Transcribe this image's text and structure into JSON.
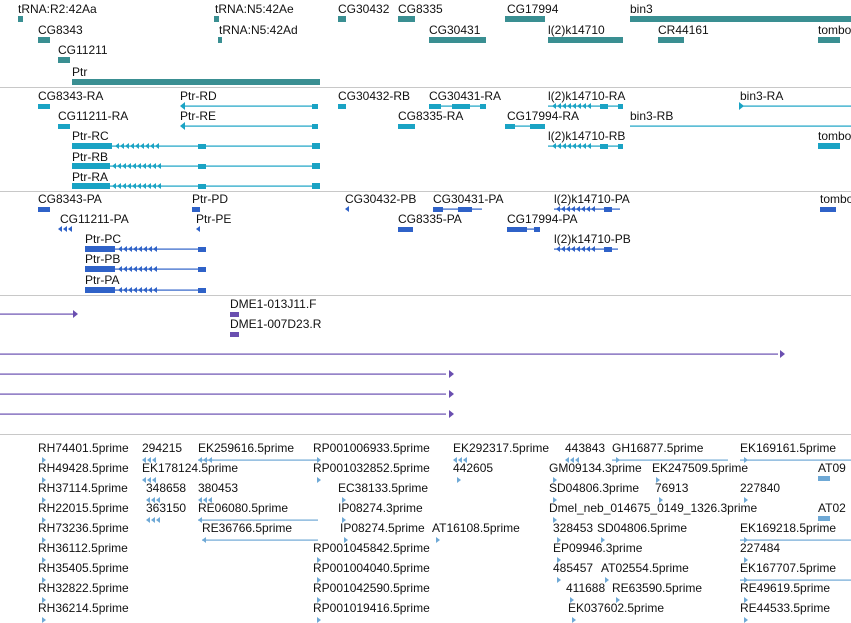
{
  "colors": {
    "gene": "#3a8f92",
    "rna": "#1aa3c4",
    "protein": "#2f62c8",
    "clone": "#6a4fb0",
    "est": "#6fa9d6",
    "separator": "#c8c8c8"
  },
  "tracks": [
    {
      "name": "genes",
      "color": "gene",
      "labels": [
        {
          "id": "g1",
          "text": "tRNA:R2:42Aa"
        },
        {
          "id": "g2",
          "text": "tRNA:N5:42Ae"
        },
        {
          "id": "g3",
          "text": "CG30432"
        },
        {
          "id": "g4",
          "text": "CG8335"
        },
        {
          "id": "g5",
          "text": "CG17994"
        },
        {
          "id": "g6",
          "text": "bin3"
        },
        {
          "id": "g7",
          "text": "CG8343"
        },
        {
          "id": "g8",
          "text": "tRNA:N5:42Ad"
        },
        {
          "id": "g9",
          "text": "CG30431"
        },
        {
          "id": "g10",
          "text": "l(2)k14710"
        },
        {
          "id": "g11",
          "text": "CR44161"
        },
        {
          "id": "g12",
          "text": "tombo"
        },
        {
          "id": "g13",
          "text": "CG11211"
        },
        {
          "id": "g14",
          "text": "Ptr"
        }
      ]
    },
    {
      "name": "transcripts",
      "color": "rna",
      "labels": [
        {
          "id": "t1",
          "text": "CG8343-RA"
        },
        {
          "id": "t2",
          "text": "Ptr-RD"
        },
        {
          "id": "t3",
          "text": "CG30432-RB"
        },
        {
          "id": "t4",
          "text": "CG30431-RA"
        },
        {
          "id": "t5",
          "text": "l(2)k14710-RA"
        },
        {
          "id": "t6",
          "text": "bin3-RA"
        },
        {
          "id": "t7",
          "text": "CG11211-RA"
        },
        {
          "id": "t8",
          "text": "Ptr-RE"
        },
        {
          "id": "t9",
          "text": "CG8335-RA"
        },
        {
          "id": "t10",
          "text": "CG17994-RA"
        },
        {
          "id": "t11",
          "text": "bin3-RB"
        },
        {
          "id": "t12",
          "text": "Ptr-RC"
        },
        {
          "id": "t13",
          "text": "l(2)k14710-RB"
        },
        {
          "id": "t14",
          "text": "tombo"
        },
        {
          "id": "t15",
          "text": "Ptr-RB"
        },
        {
          "id": "t16",
          "text": "Ptr-RA"
        }
      ]
    },
    {
      "name": "proteins",
      "color": "protein",
      "labels": [
        {
          "id": "p1",
          "text": "CG8343-PA"
        },
        {
          "id": "p2",
          "text": "Ptr-PD"
        },
        {
          "id": "p3",
          "text": "CG30432-PB"
        },
        {
          "id": "p4",
          "text": "CG30431-PA"
        },
        {
          "id": "p5",
          "text": "l(2)k14710-PA"
        },
        {
          "id": "p6",
          "text": "tombo"
        },
        {
          "id": "p7",
          "text": "CG11211-PA"
        },
        {
          "id": "p8",
          "text": "Ptr-PE"
        },
        {
          "id": "p9",
          "text": "CG8335-PA"
        },
        {
          "id": "p10",
          "text": "CG17994-PA"
        },
        {
          "id": "p11",
          "text": "l(2)k14710-PB"
        },
        {
          "id": "p12",
          "text": "Ptr-PC"
        },
        {
          "id": "p13",
          "text": "Ptr-PB"
        },
        {
          "id": "p14",
          "text": "Ptr-PA"
        }
      ]
    },
    {
      "name": "clones",
      "color": "clone",
      "labels": [
        {
          "id": "c1",
          "text": "DME1-013J11.F"
        },
        {
          "id": "c2",
          "text": "DME1-007D23.R"
        }
      ]
    },
    {
      "name": "ests",
      "color": "est",
      "labels": [
        {
          "id": "e1",
          "text": "RH74401.5prime"
        },
        {
          "id": "e2",
          "text": "294215"
        },
        {
          "id": "e3",
          "text": "EK259616.5prime"
        },
        {
          "id": "e4",
          "text": "RP001006933.5prime"
        },
        {
          "id": "e5",
          "text": "EK292317.5prime"
        },
        {
          "id": "e6",
          "text": "443843"
        },
        {
          "id": "e7",
          "text": "GH16877.5prime"
        },
        {
          "id": "e8",
          "text": "EK169161.5prime"
        },
        {
          "id": "e9",
          "text": "RH49428.5prime"
        },
        {
          "id": "e10",
          "text": "EK178124.5prime"
        },
        {
          "id": "e11",
          "text": "RP001032852.5prime"
        },
        {
          "id": "e12",
          "text": "442605"
        },
        {
          "id": "e13",
          "text": "GM09134.3prime"
        },
        {
          "id": "e14",
          "text": "EK247509.5prime"
        },
        {
          "id": "e15",
          "text": "AT09"
        },
        {
          "id": "e16",
          "text": "RH37114.5prime"
        },
        {
          "id": "e17",
          "text": "348658"
        },
        {
          "id": "e18",
          "text": "380453"
        },
        {
          "id": "e19",
          "text": "EC38133.5prime"
        },
        {
          "id": "e20",
          "text": "SD04806.3prime"
        },
        {
          "id": "e21",
          "text": "76913"
        },
        {
          "id": "e22",
          "text": "227840"
        },
        {
          "id": "e23",
          "text": "RH22015.5prime"
        },
        {
          "id": "e24",
          "text": "363150"
        },
        {
          "id": "e25",
          "text": "RE06080.5prime"
        },
        {
          "id": "e26",
          "text": "IP08274.3prime"
        },
        {
          "id": "e27",
          "text": "Dmel_neb_014675_0149_1326.3prime"
        },
        {
          "id": "e28",
          "text": "AT02"
        },
        {
          "id": "e29",
          "text": "RH73236.5prime"
        },
        {
          "id": "e30",
          "text": "RE36766.5prime"
        },
        {
          "id": "e31",
          "text": "IP08274.5prime"
        },
        {
          "id": "e32",
          "text": "AT16108.5prime"
        },
        {
          "id": "e33",
          "text": "328453"
        },
        {
          "id": "e34",
          "text": "SD04806.5prime"
        },
        {
          "id": "e35",
          "text": "EK169218.5prime"
        },
        {
          "id": "e36",
          "text": "RH36112.5prime"
        },
        {
          "id": "e37",
          "text": "RP001045842.5prime"
        },
        {
          "id": "e38",
          "text": "EP09946.3prime"
        },
        {
          "id": "e39",
          "text": "227484"
        },
        {
          "id": "e40",
          "text": "RH35405.5prime"
        },
        {
          "id": "e41",
          "text": "RP001004040.5prime"
        },
        {
          "id": "e42",
          "text": "485457"
        },
        {
          "id": "e43",
          "text": "AT02554.5prime"
        },
        {
          "id": "e44",
          "text": "EK167707.5prime"
        },
        {
          "id": "e45",
          "text": "RH32822.5prime"
        },
        {
          "id": "e46",
          "text": "RP001042590.5prime"
        },
        {
          "id": "e47",
          "text": "411688"
        },
        {
          "id": "e48",
          "text": "RE63590.5prime"
        },
        {
          "id": "e49",
          "text": "RE49619.5prime"
        },
        {
          "id": "e50",
          "text": "RH36214.5prime"
        },
        {
          "id": "e51",
          "text": "RP001019416.5prime"
        },
        {
          "id": "e52",
          "text": "EK037602.5prime"
        },
        {
          "id": "e53",
          "text": "RE44533.5prime"
        }
      ]
    }
  ]
}
